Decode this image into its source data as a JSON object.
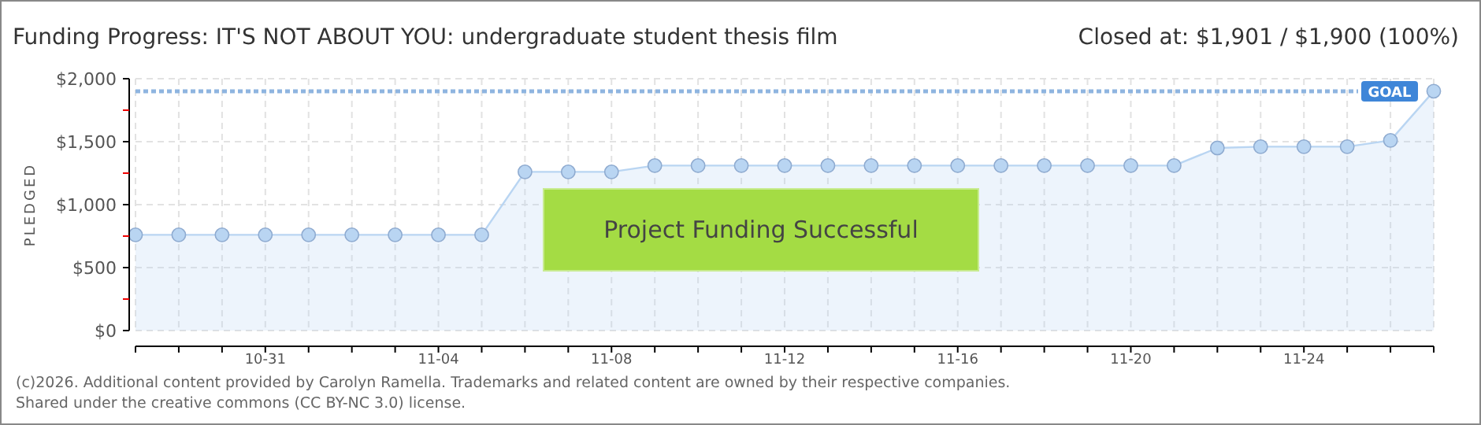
{
  "chart_data": {
    "type": "area",
    "title": "Funding Progress: IT'S NOT ABOUT YOU: undergraduate student thesis film",
    "subtitle": "Closed at:  $1,901 /  $1,900 (100%)",
    "ylabel": "PLEDGED",
    "x": [
      "--10-28",
      "--10-29",
      "--10-30",
      "--10-31",
      "--11-01",
      "--11-02",
      "--11-03",
      "--11-04",
      "--11-05",
      "--11-06",
      "--11-07",
      "--11-08",
      "--11-09",
      "--11-10",
      "--11-11",
      "--11-12",
      "--11-13",
      "--11-14",
      "--11-15",
      "--11-16",
      "--11-17",
      "--11-18",
      "--11-19",
      "--11-20",
      "--11-21",
      "--11-22",
      "--11-23",
      "--11-24",
      "--11-25",
      "--11-26",
      "--11-27"
    ],
    "series": [
      {
        "color": "#b9d5f2",
        "values": [
          760,
          760,
          760,
          760,
          760,
          760,
          760,
          760,
          760,
          1260,
          1260,
          1260,
          1310,
          1310,
          1310,
          1310,
          1310,
          1310,
          1310,
          1310,
          1310,
          1310,
          1310,
          1310,
          1310,
          1450,
          1460,
          1460,
          1460,
          1510,
          1901
        ]
      }
    ],
    "xlim": [
      "--10-28",
      "--11-27"
    ],
    "xticks": [
      {
        "value": "--10-28",
        "label": null
      },
      {
        "value": "--10-29",
        "label": null
      },
      {
        "value": "--10-30",
        "label": null
      },
      {
        "value": "--10-31",
        "label": "10-31"
      },
      {
        "value": "--11-01",
        "label": null
      },
      {
        "value": "--11-02",
        "label": null
      },
      {
        "value": "--11-03",
        "label": null
      },
      {
        "value": "--11-04",
        "label": "11-04"
      },
      {
        "value": "--11-05",
        "label": null
      },
      {
        "value": "--11-06",
        "label": null
      },
      {
        "value": "--11-07",
        "label": null
      },
      {
        "value": "--11-08",
        "label": "11-08"
      },
      {
        "value": "--11-09",
        "label": null
      },
      {
        "value": "--11-10",
        "label": null
      },
      {
        "value": "--11-11",
        "label": null
      },
      {
        "value": "--11-12",
        "label": "11-12"
      },
      {
        "value": "--11-13",
        "label": null
      },
      {
        "value": "--11-14",
        "label": null
      },
      {
        "value": "--11-15",
        "label": null
      },
      {
        "value": "--11-16",
        "label": "11-16"
      },
      {
        "value": "--11-17",
        "label": null
      },
      {
        "value": "--11-18",
        "label": null
      },
      {
        "value": "--11-19",
        "label": null
      },
      {
        "value": "--11-20",
        "label": "11-20"
      },
      {
        "value": "--11-21",
        "label": null
      },
      {
        "value": "--11-22",
        "label": null
      },
      {
        "value": "--11-23",
        "label": null
      },
      {
        "value": "--11-24",
        "label": "11-24"
      },
      {
        "value": "--11-25",
        "label": null
      },
      {
        "value": "--11-26",
        "label": null
      },
      {
        "value": "--11-27",
        "label": null
      }
    ],
    "ylim": [
      0,
      2000
    ],
    "yticks": [
      {
        "value": 0,
        "label": "$0"
      },
      {
        "value": 250,
        "label": null
      },
      {
        "value": 500,
        "label": "$500"
      },
      {
        "value": 750,
        "label": null
      },
      {
        "value": 1000,
        "label": "$1,000"
      },
      {
        "value": 1250,
        "label": null
      },
      {
        "value": 1500,
        "label": "$1,500"
      },
      {
        "value": 1750,
        "label": null
      },
      {
        "value": 2000,
        "label": "$2,000"
      }
    ],
    "grid": true,
    "marker": "circle",
    "line_style": "solid",
    "ref_lines": [
      {
        "axis": "y",
        "value": 1900,
        "label": "GOAL",
        "color": "#8fb5e0",
        "line_style": "dotted"
      }
    ],
    "annotations": [
      "Project Funding Successful",
      "(c)2026. Additional content provided by Carolyn Ramella. Trademarks and related content are owned by their respective companies.",
      "Shared under the creative commons (CC BY-NC 3.0) license."
    ]
  }
}
